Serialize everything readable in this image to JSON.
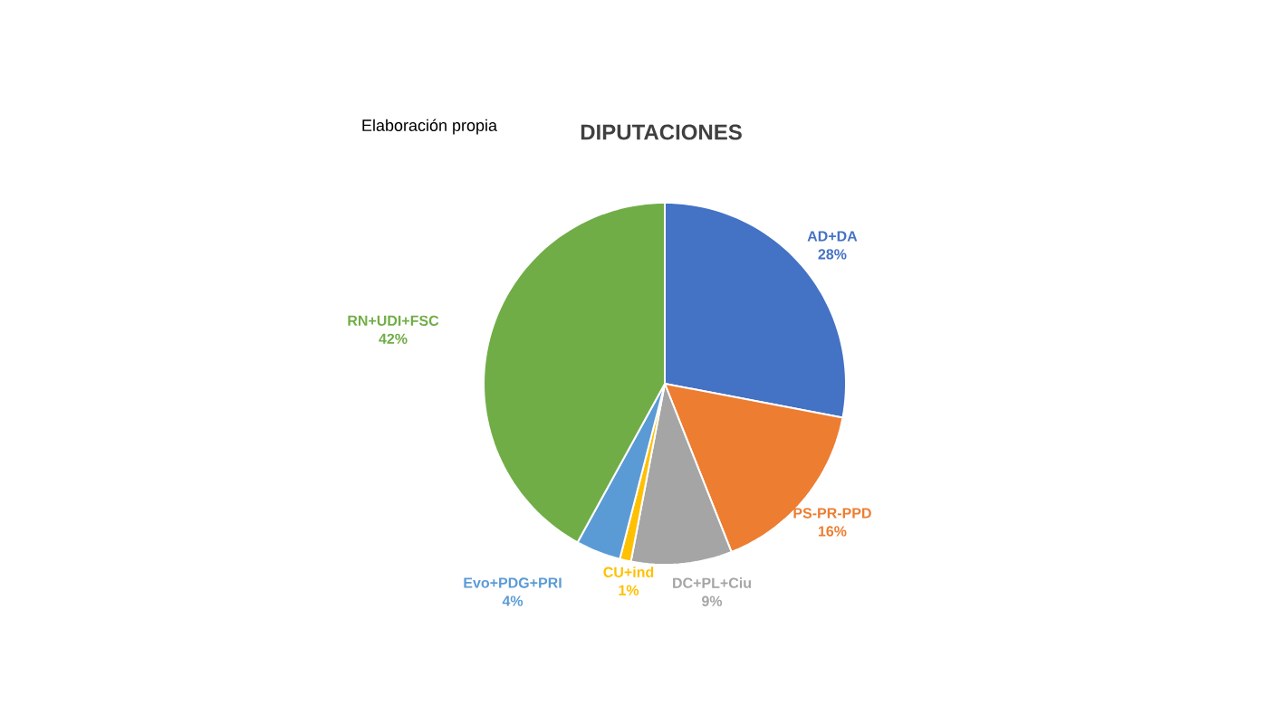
{
  "chart_data": {
    "type": "pie",
    "title": "DIPUTACIONES",
    "categories": [
      "AD+DA",
      "PS-PR-PPD",
      "DC+PL+Ciu",
      "CU+ind",
      "Evo+PDG+PRI",
      "RN+UDI+FSC"
    ],
    "values": [
      28,
      16,
      9,
      1,
      4,
      42
    ],
    "value_labels": [
      "28%",
      "16%",
      "9%",
      "1%",
      "4%",
      "42%"
    ],
    "colors": [
      "#4472c4",
      "#ed7d31",
      "#a5a5a5",
      "#ffc000",
      "#5b9bd5",
      "#70ad47"
    ],
    "annotations": [
      "Elaboración propia"
    ]
  }
}
